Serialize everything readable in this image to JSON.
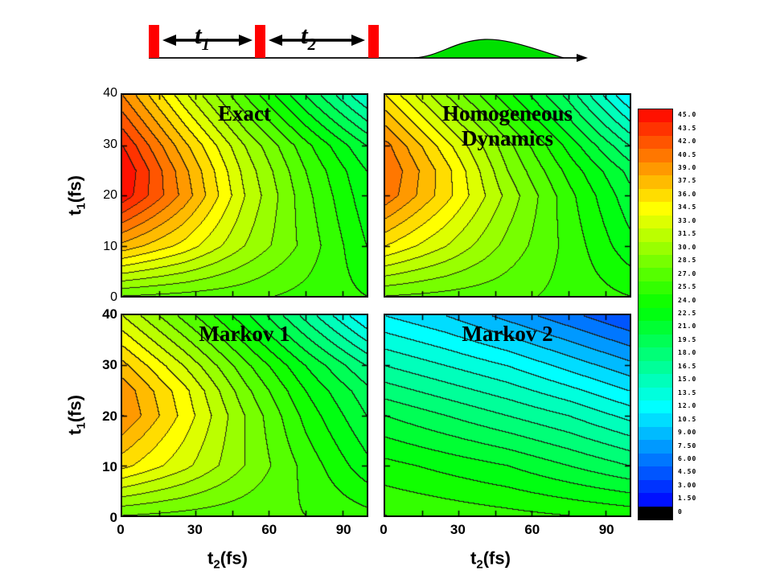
{
  "stage": {
    "background": "#ffffff"
  },
  "pulse_diagram": {
    "t1_base": "t",
    "t1_sub": "1",
    "t2_base": "t",
    "t2_sub": "2",
    "bar_color": "#ff0000",
    "pulse_fill": "#00e000",
    "line_color": "#000000"
  },
  "axes": {
    "y_label_base": "t",
    "y_label_sub": "1",
    "y_label_rest": "(fs)",
    "x_label_base": "t",
    "x_label_sub": "2",
    "x_label_rest": "(fs)",
    "y_ticks": [
      "0",
      "10",
      "20",
      "30",
      "40"
    ],
    "x_ticks": [
      "0",
      "30",
      "60",
      "90"
    ],
    "x_range": [
      0,
      100
    ],
    "y_range": [
      0,
      40
    ]
  },
  "colorbar": {
    "vmin": 0,
    "vmax": 45,
    "step": 1.5,
    "bottom_color": "#000000",
    "labels": [
      "45.0",
      "43.5",
      "42.0",
      "40.5",
      "39.0",
      "37.5",
      "36.0",
      "34.5",
      "33.0",
      "31.5",
      "30.0",
      "28.5",
      "27.0",
      "25.5",
      "24.0",
      "22.5",
      "21.0",
      "19.5",
      "18.0",
      "16.5",
      "15.0",
      "13.5",
      "12.0",
      "10.5",
      "9.00",
      "7.50",
      "6.00",
      "4.50",
      "3.00",
      "1.50",
      "0"
    ]
  },
  "chart_data": {
    "type": "heatmap",
    "subtype": "filled-contour",
    "title": "",
    "xlabel": "t2 (fs)",
    "ylabel": "t1 (fs)",
    "vmin": 0,
    "vmax": 45,
    "contour_step": 1.5,
    "x": [
      0,
      25,
      50,
      75,
      100
    ],
    "panels": [
      {
        "id": "exact",
        "title_lines": [
          "Exact"
        ],
        "y": [
          40,
          30,
          25,
          20,
          10,
          0
        ],
        "grid": [
          [
            39.0,
            32.0,
            25.5,
            19.5,
            13.5
          ],
          [
            43.5,
            36.5,
            30.0,
            24.5,
            19.5
          ],
          [
            45.0,
            38.0,
            31.0,
            25.5,
            21.0
          ],
          [
            44.5,
            38.5,
            31.5,
            26.0,
            21.5
          ],
          [
            37.0,
            34.0,
            30.0,
            26.5,
            22.5
          ],
          [
            27.0,
            26.5,
            26.0,
            25.0,
            24.0
          ]
        ]
      },
      {
        "id": "homogeneous",
        "title_lines": [
          "Homogeneous",
          "Dynamics"
        ],
        "y": [
          40,
          30,
          25,
          20,
          10,
          0
        ],
        "grid": [
          [
            34.5,
            28.5,
            23.0,
            17.5,
            10.5
          ],
          [
            39.5,
            33.5,
            27.5,
            22.0,
            16.5
          ],
          [
            40.5,
            35.0,
            28.5,
            23.5,
            19.0
          ],
          [
            40.0,
            35.0,
            29.5,
            24.5,
            20.0
          ],
          [
            34.5,
            31.5,
            28.0,
            25.0,
            21.5
          ],
          [
            27.0,
            26.5,
            26.0,
            25.0,
            24.0
          ]
        ]
      },
      {
        "id": "markov1",
        "title_lines": [
          "Markov 1"
        ],
        "y": [
          40,
          30,
          25,
          20,
          10,
          0
        ],
        "grid": [
          [
            31.5,
            26.5,
            21.5,
            16.0,
            10.5
          ],
          [
            36.5,
            31.5,
            26.0,
            21.0,
            16.5
          ],
          [
            38.5,
            33.5,
            27.5,
            22.5,
            18.5
          ],
          [
            39.0,
            34.0,
            28.5,
            23.5,
            19.5
          ],
          [
            35.0,
            32.0,
            28.5,
            25.0,
            21.5
          ],
          [
            27.0,
            26.5,
            26.0,
            25.5,
            24.5
          ]
        ]
      },
      {
        "id": "markov2",
        "title_lines": [
          "Markov 2"
        ],
        "y": [
          40,
          30,
          20,
          10,
          0
        ],
        "grid": [
          [
            10.5,
            9.0,
            7.0,
            5.0,
            3.0
          ],
          [
            15.0,
            13.5,
            12.0,
            10.0,
            8.0
          ],
          [
            19.5,
            18.0,
            16.5,
            15.0,
            13.0
          ],
          [
            23.0,
            22.0,
            21.0,
            19.5,
            18.0
          ],
          [
            25.5,
            25.0,
            24.5,
            24.0,
            23.5
          ]
        ]
      }
    ]
  }
}
